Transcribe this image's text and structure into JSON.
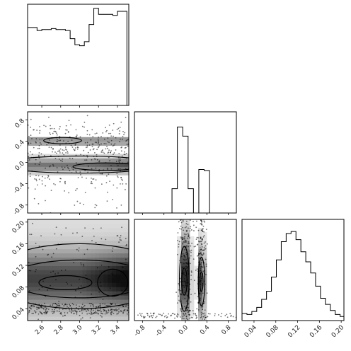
{
  "chart_data": {
    "type": "corner",
    "title": "",
    "parameters": [
      {
        "range": [
          2.45,
          3.52
        ],
        "ticks": [
          2.6,
          2.8,
          3.0,
          3.2,
          3.4
        ],
        "tick_labels": [
          "2.6",
          "2.8",
          "3.0",
          "3.2",
          "3.4"
        ]
      },
      {
        "range": [
          -0.95,
          0.95
        ],
        "ticks": [
          -0.8,
          -0.4,
          0.0,
          0.4,
          0.8
        ],
        "tick_labels": [
          "-0.8",
          "-0.4",
          "0.0",
          "0.4",
          "0.8"
        ]
      },
      {
        "range": [
          0.018,
          0.205
        ],
        "ticks": [
          0.04,
          0.08,
          0.12,
          0.16,
          0.2
        ],
        "tick_labels": [
          "0.04",
          "0.08",
          "0.12",
          "0.16",
          "0.20"
        ]
      }
    ],
    "histograms": [
      {
        "param": 0,
        "edges": [
          2.45,
          2.5,
          2.55,
          2.6,
          2.65,
          2.7,
          2.75,
          2.8,
          2.85,
          2.9,
          2.95,
          3.0,
          3.05,
          3.1,
          3.15,
          3.2,
          3.25,
          3.3,
          3.35,
          3.4,
          3.45,
          3.5
        ],
        "values": [
          0.77,
          0.77,
          0.74,
          0.75,
          0.75,
          0.76,
          0.75,
          0.75,
          0.74,
          0.66,
          0.6,
          0.59,
          0.63,
          0.8,
          0.96,
          0.9,
          0.9,
          0.9,
          0.89,
          0.93,
          0.93
        ],
        "ylim": [
          0,
          1.0
        ]
      },
      {
        "param": 1,
        "edges": [
          -0.95,
          -0.85,
          -0.75,
          -0.65,
          -0.55,
          -0.45,
          -0.35,
          -0.25,
          -0.15,
          -0.05,
          0.05,
          0.15,
          0.25,
          0.35,
          0.45,
          0.55,
          0.65,
          0.75,
          0.85,
          0.95
        ],
        "values": [
          0,
          0,
          0,
          0,
          0,
          0,
          0,
          0.24,
          0.85,
          0.76,
          0.24,
          0,
          0.43,
          0.42,
          0,
          0,
          0,
          0,
          0
        ],
        "ylim": [
          0,
          1.0
        ]
      },
      {
        "param": 2,
        "edges": [
          0.018,
          0.027,
          0.036,
          0.045,
          0.054,
          0.063,
          0.072,
          0.081,
          0.09,
          0.099,
          0.108,
          0.117,
          0.126,
          0.135,
          0.144,
          0.153,
          0.162,
          0.171,
          0.18,
          0.189,
          0.198,
          0.207
        ],
        "values": [
          0.07,
          0.06,
          0.09,
          0.13,
          0.21,
          0.29,
          0.43,
          0.6,
          0.78,
          0.86,
          0.88,
          0.8,
          0.68,
          0.58,
          0.47,
          0.34,
          0.22,
          0.16,
          0.1,
          0.06,
          0.04
        ],
        "ylim": [
          0,
          1.0
        ]
      }
    ],
    "pairs": [
      {
        "x_param": 0,
        "y_param": 1,
        "description_modes_y": [
          0.4,
          -0.05
        ],
        "contour_levels": 3
      },
      {
        "x_param": 0,
        "y_param": 2,
        "description_modes_y": [
          0.09
        ],
        "contour_levels": 3
      },
      {
        "x_param": 1,
        "y_param": 2,
        "description_modes_x": [
          0.0,
          0.3
        ],
        "contour_levels": 3
      }
    ],
    "grid": false,
    "legend": "none"
  },
  "colors": {
    "line": "#000000",
    "background": "#ffffff",
    "density_dark": "#111111",
    "density_light": "#f2f2f2"
  }
}
